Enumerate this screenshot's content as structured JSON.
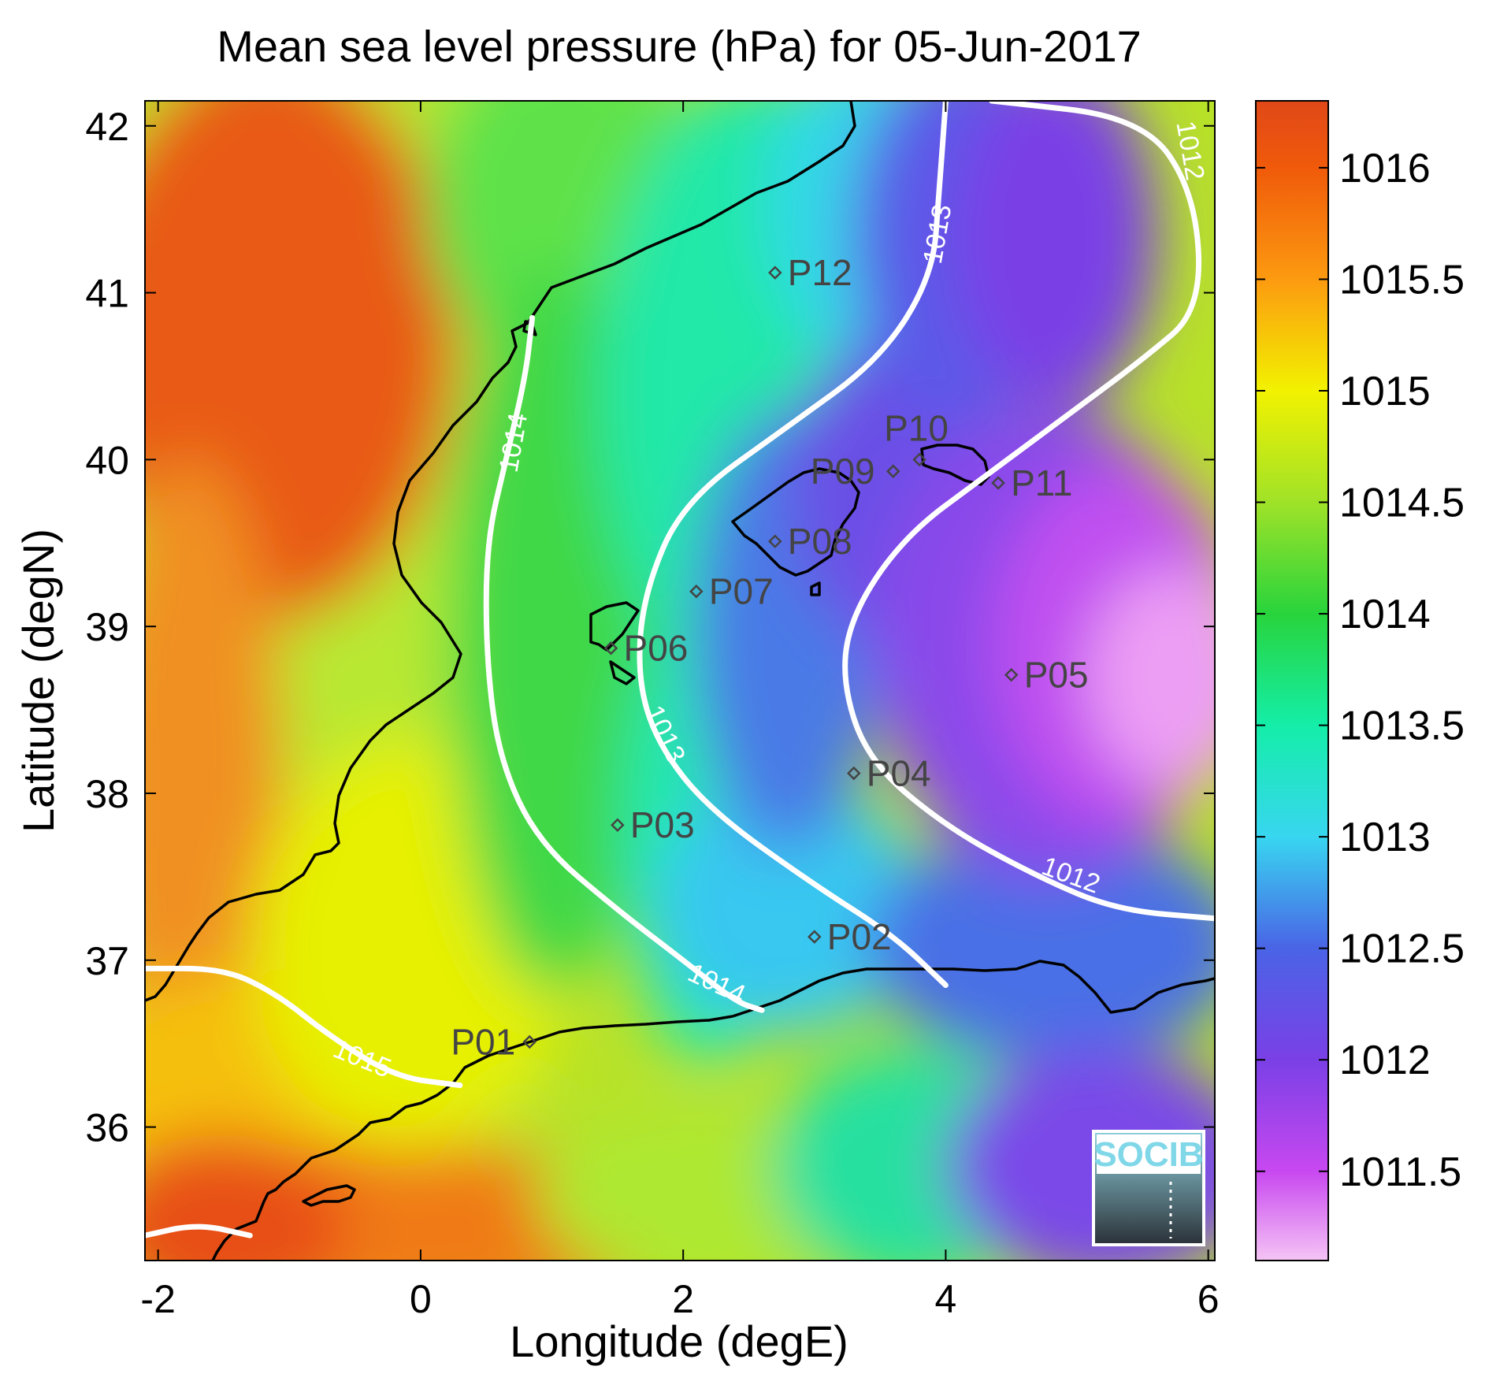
{
  "chart_data": {
    "type": "heatmap",
    "title": "Mean sea level pressure (hPa) for 05-Jun-2017",
    "xlabel": "Longitude (degE)",
    "ylabel": "Latitude (degN)",
    "xlim": [
      -2.1,
      6.05
    ],
    "ylim": [
      35.2,
      42.15
    ],
    "x_ticks": [
      -2,
      0,
      2,
      4,
      6
    ],
    "x_tick_labels": [
      "-2",
      "0",
      "2",
      "4",
      "6"
    ],
    "y_ticks": [
      36,
      37,
      38,
      39,
      40,
      41,
      42
    ],
    "y_tick_labels": [
      "36",
      "37",
      "38",
      "39",
      "40",
      "41",
      "42"
    ],
    "colorbar": {
      "range": [
        1011.1,
        1016.3
      ],
      "ticks": [
        1011.5,
        1012,
        1012.5,
        1013,
        1013.5,
        1014,
        1014.5,
        1015,
        1015.5,
        1016
      ],
      "tick_labels": [
        "1011.5",
        "1012",
        "1012.5",
        "1013",
        "1013.5",
        "1014",
        "1014.5",
        "1015",
        "1015.5",
        "1016"
      ],
      "stops": [
        {
          "value": 1011.1,
          "color": "#f5c4f5"
        },
        {
          "value": 1011.5,
          "color": "#c848f0"
        },
        {
          "value": 1012.0,
          "color": "#7a40e6"
        },
        {
          "value": 1012.5,
          "color": "#4a64e6"
        },
        {
          "value": 1013.0,
          "color": "#38d6f0"
        },
        {
          "value": 1013.5,
          "color": "#14eea8"
        },
        {
          "value": 1014.0,
          "color": "#28d43c"
        },
        {
          "value": 1014.5,
          "color": "#a0e228"
        },
        {
          "value": 1015.0,
          "color": "#f2f200"
        },
        {
          "value": 1015.5,
          "color": "#fc9a10"
        },
        {
          "value": 1016.0,
          "color": "#f05a0a"
        },
        {
          "value": 1016.3,
          "color": "#e04818"
        }
      ]
    },
    "contours": [
      {
        "level": 1012,
        "label": "1012",
        "points": [
          [
            4.35,
            42.15
          ],
          [
            5.5,
            42.05
          ],
          [
            5.9,
            41.6
          ],
          [
            5.95,
            40.9
          ],
          [
            5.5,
            40.6
          ],
          [
            4.9,
            40.25
          ],
          [
            4.3,
            39.9
          ],
          [
            3.7,
            39.55
          ],
          [
            3.3,
            39.1
          ],
          [
            3.2,
            38.7
          ],
          [
            3.4,
            38.2
          ],
          [
            4.0,
            37.8
          ],
          [
            4.7,
            37.5
          ],
          [
            5.3,
            37.3
          ],
          [
            6.05,
            37.25
          ]
        ],
        "labels": [
          {
            "text": "1012",
            "lon": 5.85,
            "lat": 41.85,
            "angle": 80
          },
          {
            "text": "1012",
            "lon": 4.95,
            "lat": 37.5,
            "angle": 20
          }
        ]
      },
      {
        "level": 1013,
        "label": "1013",
        "points": [
          [
            4.0,
            42.15
          ],
          [
            3.95,
            41.6
          ],
          [
            3.9,
            41.1
          ],
          [
            3.5,
            40.6
          ],
          [
            2.8,
            40.2
          ],
          [
            2.0,
            39.75
          ],
          [
            1.7,
            39.2
          ],
          [
            1.65,
            38.7
          ],
          [
            1.8,
            38.3
          ],
          [
            2.2,
            37.9
          ],
          [
            3.0,
            37.45
          ],
          [
            3.6,
            37.15
          ],
          [
            4.0,
            36.85
          ]
        ],
        "labels": [
          {
            "text": "1013",
            "lon": 3.95,
            "lat": 41.35,
            "angle": -80
          },
          {
            "text": "1013",
            "lon": 1.85,
            "lat": 38.35,
            "angle": 65
          }
        ]
      },
      {
        "level": 1014,
        "label": "1014",
        "points": [
          [
            0.85,
            40.85
          ],
          [
            0.8,
            40.5
          ],
          [
            0.65,
            40.0
          ],
          [
            0.5,
            39.5
          ],
          [
            0.5,
            38.8
          ],
          [
            0.6,
            38.2
          ],
          [
            0.9,
            37.7
          ],
          [
            1.5,
            37.3
          ],
          [
            2.0,
            37.0
          ],
          [
            2.4,
            36.75
          ],
          [
            2.6,
            36.7
          ]
        ],
        "labels": [
          {
            "text": "1014",
            "lon": 0.72,
            "lat": 40.1,
            "angle": -80
          },
          {
            "text": "1014",
            "lon": 2.25,
            "lat": 36.85,
            "angle": 25
          }
        ]
      },
      {
        "level": 1015,
        "label": "1015",
        "points": [
          [
            -2.1,
            36.95
          ],
          [
            -1.5,
            36.95
          ],
          [
            -1.1,
            36.8
          ],
          [
            -0.7,
            36.55
          ],
          [
            -0.2,
            36.3
          ],
          [
            0.3,
            36.25
          ]
        ],
        "labels": [
          {
            "text": "1015",
            "lon": -0.45,
            "lat": 36.4,
            "angle": 22
          }
        ]
      },
      {
        "level": 1015,
        "label": "",
        "points": [
          [
            -2.1,
            35.35
          ],
          [
            -1.7,
            35.42
          ],
          [
            -1.3,
            35.35
          ]
        ],
        "labels": []
      }
    ],
    "stations": [
      {
        "name": "P01",
        "lon": 0.83,
        "lat": 36.51
      },
      {
        "name": "P02",
        "lon": 3.0,
        "lat": 37.14
      },
      {
        "name": "P03",
        "lon": 1.5,
        "lat": 37.81
      },
      {
        "name": "P04",
        "lon": 3.3,
        "lat": 38.12
      },
      {
        "name": "P05",
        "lon": 4.5,
        "lat": 38.71
      },
      {
        "name": "P06",
        "lon": 1.45,
        "lat": 38.87
      },
      {
        "name": "P07",
        "lon": 2.1,
        "lat": 39.21
      },
      {
        "name": "P08",
        "lon": 2.7,
        "lat": 39.51
      },
      {
        "name": "P09",
        "lon": 3.6,
        "lat": 39.93
      },
      {
        "name": "P10",
        "lon": 3.8,
        "lat": 40.0
      },
      {
        "name": "P11",
        "lon": 4.4,
        "lat": 39.86
      },
      {
        "name": "P12",
        "lon": 2.7,
        "lat": 41.12
      }
    ]
  },
  "logo": {
    "text": "SOCIB"
  }
}
